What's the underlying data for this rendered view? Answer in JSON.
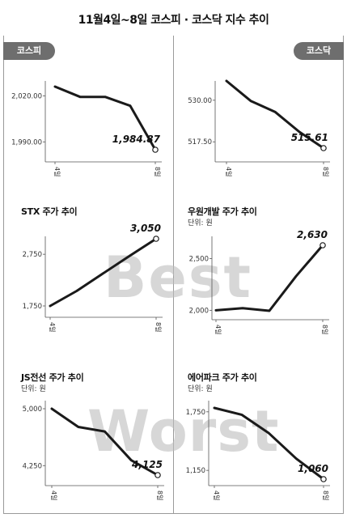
{
  "header": {
    "title": "11월4일~8일 코스피 · 코스닥 지수 추이"
  },
  "tags": {
    "left": "코스피",
    "right": "코스닥"
  },
  "watermark": {
    "top": "Best",
    "bottom": "Worst"
  },
  "colors": {
    "line": "#1a1a1a",
    "tag_bg": "#6e6e6e",
    "watermark": "#bdbdbd"
  },
  "chart_data": [
    {
      "id": "kospi",
      "type": "line",
      "title": "",
      "unit": "",
      "categories": [
        "4일",
        "",
        "",
        "",
        "8일"
      ],
      "values": [
        2026,
        2019.3,
        2019.3,
        2013.5,
        1984.87
      ],
      "ytick_values": [
        2020,
        1990
      ],
      "ytick_labels": [
        "2,020.00",
        "1,990.00"
      ],
      "ylim": [
        1984.87,
        2026
      ],
      "end_label": "1,984.87",
      "label_side": "left"
    },
    {
      "id": "kosdaq",
      "type": "line",
      "title": "",
      "unit": "",
      "categories": [
        "4일",
        "",
        "",
        "",
        "8일"
      ],
      "values": [
        535.8,
        529.8,
        526.5,
        520.5,
        515.61
      ],
      "ytick_values": [
        530,
        517.5
      ],
      "ytick_labels": [
        "530.00",
        "517.50"
      ],
      "ylim": [
        515.61,
        535.8
      ],
      "end_label": "515.61",
      "label_side": "left"
    },
    {
      "id": "stx",
      "type": "line",
      "title": "STX 주가 추이",
      "unit": "",
      "categories": [
        "4일",
        "",
        "",
        "",
        "8일"
      ],
      "values": [
        1750,
        2040,
        2380,
        2720,
        3050
      ],
      "ytick_values": [
        2750,
        1750
      ],
      "ytick_labels": [
        "2,750",
        "1,750"
      ],
      "ylim": [
        1750,
        3050
      ],
      "end_label": "3,050",
      "label_side": "left"
    },
    {
      "id": "woowon",
      "type": "line",
      "title": "우원개발 주가 추이",
      "unit": "단위: 원",
      "categories": [
        "4일",
        "",
        "",
        "",
        "8일"
      ],
      "values": [
        2000,
        2020,
        1995,
        2330,
        2630
      ],
      "ytick_values": [
        2500,
        2000
      ],
      "ytick_labels": [
        "2,500",
        "2,000"
      ],
      "ylim": [
        1995,
        2630
      ],
      "end_label": "2,630",
      "label_side": "left"
    },
    {
      "id": "js",
      "type": "line",
      "title": "JS전선 주가 추이",
      "unit": "단위: 원",
      "categories": [
        "4일",
        "",
        "",
        "",
        "8일"
      ],
      "values": [
        5000,
        4760,
        4700,
        4320,
        4125
      ],
      "ytick_values": [
        5000,
        4250
      ],
      "ytick_labels": [
        "5,000",
        "4,250"
      ],
      "ylim": [
        4125,
        5000
      ],
      "end_label": "4,125",
      "label_side": "left"
    },
    {
      "id": "ever",
      "type": "line",
      "title": "에어파크 주가 추이",
      "unit": "단위: 원",
      "categories": [
        "4일",
        "",
        "",
        "",
        "8일"
      ],
      "values": [
        1790,
        1720,
        1530,
        1270,
        1060
      ],
      "ytick_values": [
        1750,
        1150
      ],
      "ytick_labels": [
        "1,750",
        "1,150"
      ],
      "ylim": [
        1060,
        1790
      ],
      "end_label": "1,060",
      "label_side": "left"
    }
  ]
}
